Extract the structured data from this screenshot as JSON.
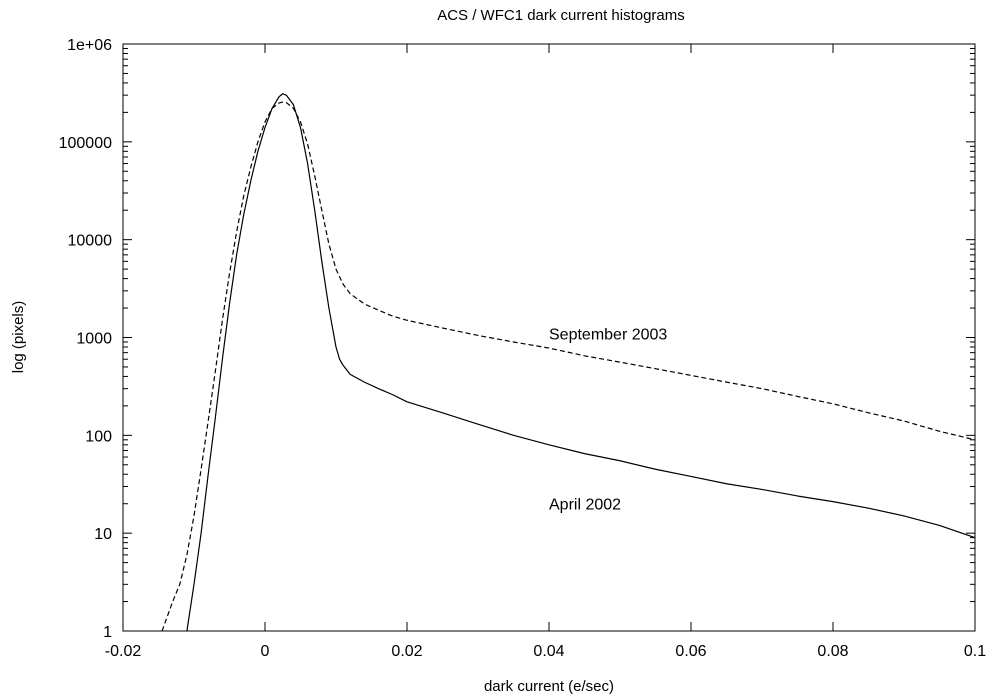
{
  "chart_data": {
    "type": "line",
    "title": "ACS / WFC1 dark current histograms",
    "xlabel": "dark current (e/sec)",
    "ylabel": "log (pixels)",
    "xlim": [
      -0.02,
      0.1
    ],
    "ylim": [
      1,
      1000000
    ],
    "yscale": "log",
    "grid": false,
    "x_ticks": [
      -0.02,
      0,
      0.02,
      0.04,
      0.06,
      0.08,
      0.1
    ],
    "x_tick_labels": [
      "-0.02",
      "0",
      "0.02",
      "0.04",
      "0.06",
      "0.08",
      "0.1"
    ],
    "y_ticks": [
      1,
      10,
      100,
      1000,
      10000,
      100000,
      1000000
    ],
    "y_tick_labels": [
      "1",
      "10",
      "100",
      "1000",
      "10000",
      "100000",
      "1e+06"
    ],
    "series": [
      {
        "name": "September 2003",
        "line_style": "dashed",
        "color": "#000000",
        "label_at": [
          0.04,
          1100
        ],
        "x": [
          -0.0145,
          -0.013,
          -0.012,
          -0.011,
          -0.01,
          -0.009,
          -0.008,
          -0.007,
          -0.006,
          -0.005,
          -0.004,
          -0.003,
          -0.002,
          -0.001,
          0.0,
          0.001,
          0.002,
          0.0025,
          0.003,
          0.004,
          0.005,
          0.006,
          0.007,
          0.008,
          0.009,
          0.01,
          0.011,
          0.012,
          0.014,
          0.016,
          0.018,
          0.02,
          0.025,
          0.03,
          0.035,
          0.04,
          0.045,
          0.05,
          0.055,
          0.06,
          0.065,
          0.07,
          0.075,
          0.08,
          0.085,
          0.09,
          0.095,
          0.1
        ],
        "y": [
          1,
          2,
          3,
          6,
          15,
          45,
          140,
          450,
          1500,
          4500,
          12000,
          28000,
          55000,
          100000,
          160000,
          220000,
          250000,
          255000,
          252000,
          220000,
          160000,
          95000,
          45000,
          20000,
          9000,
          5000,
          3500,
          2800,
          2200,
          1900,
          1650,
          1500,
          1250,
          1050,
          900,
          780,
          650,
          560,
          480,
          410,
          350,
          300,
          250,
          210,
          170,
          140,
          110,
          90
        ]
      },
      {
        "name": "April 2002",
        "line_style": "solid",
        "color": "#000000",
        "label_at": [
          0.04,
          20
        ],
        "x": [
          -0.011,
          -0.01,
          -0.009,
          -0.008,
          -0.007,
          -0.006,
          -0.005,
          -0.004,
          -0.003,
          -0.002,
          -0.001,
          0.0,
          0.001,
          0.002,
          0.0025,
          0.003,
          0.004,
          0.005,
          0.006,
          0.007,
          0.008,
          0.009,
          0.01,
          0.0105,
          0.011,
          0.012,
          0.014,
          0.016,
          0.018,
          0.02,
          0.025,
          0.03,
          0.035,
          0.04,
          0.045,
          0.05,
          0.055,
          0.06,
          0.065,
          0.07,
          0.075,
          0.08,
          0.085,
          0.09,
          0.095,
          0.1
        ],
        "y": [
          1,
          3,
          10,
          40,
          150,
          600,
          2200,
          7000,
          18000,
          40000,
          80000,
          140000,
          220000,
          290000,
          310000,
          300000,
          240000,
          140000,
          60000,
          20000,
          6000,
          2000,
          800,
          600,
          520,
          420,
          350,
          300,
          260,
          220,
          170,
          130,
          100,
          80,
          65,
          55,
          45,
          38,
          32,
          28,
          24,
          21,
          18,
          15,
          12,
          9
        ]
      }
    ]
  }
}
